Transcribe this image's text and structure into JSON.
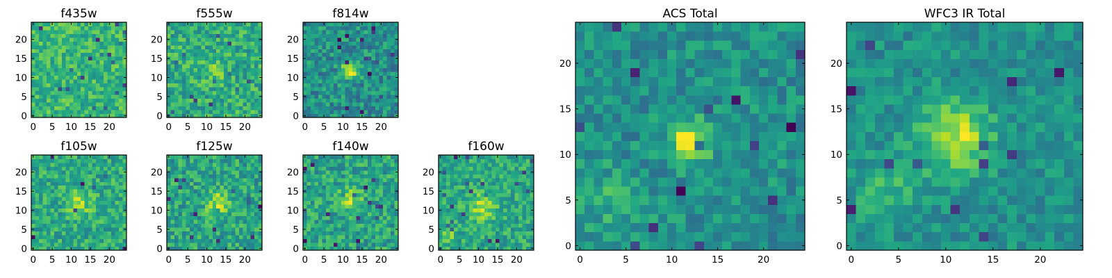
{
  "figure": {
    "background": "#ffffff"
  },
  "chart_data": [
    {
      "type": "heatmap",
      "title": "f435w",
      "xlabel": "",
      "ylabel": "",
      "xlim": [
        -0.5,
        24.5
      ],
      "ylim": [
        -0.5,
        24.5
      ],
      "xticks": [
        0,
        5,
        10,
        15,
        20
      ],
      "yticks": [
        0,
        5,
        10,
        15,
        20
      ],
      "grid_size": [
        25,
        25
      ],
      "colormap": "viridis",
      "source": {
        "kind": "noise",
        "bg": 0.66,
        "noise": 0.16,
        "seed": 11
      },
      "blobs": []
    },
    {
      "type": "heatmap",
      "title": "f555w",
      "xlabel": "",
      "ylabel": "",
      "xlim": [
        -0.5,
        24.5
      ],
      "ylim": [
        -0.5,
        24.5
      ],
      "xticks": [
        0,
        5,
        10,
        15,
        20
      ],
      "yticks": [
        0,
        5,
        10,
        15,
        20
      ],
      "grid_size": [
        25,
        25
      ],
      "colormap": "viridis",
      "source": {
        "kind": "noise",
        "bg": 0.62,
        "noise": 0.18,
        "seed": 23
      },
      "blobs": [
        {
          "x": 12,
          "y": 12,
          "sigma": 2.0,
          "amp": 0.15
        }
      ]
    },
    {
      "type": "heatmap",
      "title": "f814w",
      "xlabel": "",
      "ylabel": "",
      "xlim": [
        -0.5,
        24.5
      ],
      "ylim": [
        -0.5,
        24.5
      ],
      "xticks": [
        0,
        5,
        10,
        15,
        20
      ],
      "yticks": [
        0,
        5,
        10,
        15,
        20
      ],
      "grid_size": [
        25,
        25
      ],
      "colormap": "viridis",
      "source": {
        "kind": "noise",
        "bg": 0.5,
        "noise": 0.18,
        "seed": 37
      },
      "blobs": [
        {
          "x": 12,
          "y": 12,
          "sigma": 1.5,
          "amp": 0.5
        }
      ]
    },
    {
      "type": "heatmap",
      "title": "f105w",
      "xlabel": "",
      "ylabel": "",
      "xlim": [
        -0.5,
        24.5
      ],
      "ylim": [
        -0.5,
        24.5
      ],
      "xticks": [
        0,
        5,
        10,
        15,
        20
      ],
      "yticks": [
        0,
        5,
        10,
        15,
        20
      ],
      "grid_size": [
        25,
        25
      ],
      "colormap": "viridis",
      "source": {
        "kind": "noise",
        "bg": 0.6,
        "noise": 0.17,
        "seed": 41
      },
      "blobs": [
        {
          "x": 12,
          "y": 12,
          "sigma": 2.2,
          "amp": 0.25
        }
      ]
    },
    {
      "type": "heatmap",
      "title": "f125w",
      "xlabel": "",
      "ylabel": "",
      "xlim": [
        -0.5,
        24.5
      ],
      "ylim": [
        -0.5,
        24.5
      ],
      "xticks": [
        0,
        5,
        10,
        15,
        20
      ],
      "yticks": [
        0,
        5,
        10,
        15,
        20
      ],
      "grid_size": [
        25,
        25
      ],
      "colormap": "viridis",
      "source": {
        "kind": "noise",
        "bg": 0.58,
        "noise": 0.18,
        "seed": 53
      },
      "blobs": [
        {
          "x": 13,
          "y": 12,
          "sigma": 2.2,
          "amp": 0.3
        }
      ]
    },
    {
      "type": "heatmap",
      "title": "f140w",
      "xlabel": "",
      "ylabel": "",
      "xlim": [
        -0.5,
        24.5
      ],
      "ylim": [
        -0.5,
        24.5
      ],
      "xticks": [
        0,
        5,
        10,
        15,
        20
      ],
      "yticks": [
        0,
        5,
        10,
        15,
        20
      ],
      "grid_size": [
        25,
        25
      ],
      "colormap": "viridis",
      "source": {
        "kind": "noise",
        "bg": 0.58,
        "noise": 0.18,
        "seed": 67
      },
      "blobs": [
        {
          "x": 12,
          "y": 13,
          "sigma": 2.0,
          "amp": 0.3
        }
      ]
    },
    {
      "type": "heatmap",
      "title": "f160w",
      "xlabel": "",
      "ylabel": "",
      "xlim": [
        -0.5,
        24.5
      ],
      "ylim": [
        -0.5,
        24.5
      ],
      "xticks": [
        0,
        5,
        10,
        15,
        20
      ],
      "yticks": [
        0,
        5,
        10,
        15,
        20
      ],
      "grid_size": [
        25,
        25
      ],
      "colormap": "viridis",
      "source": {
        "kind": "noise",
        "bg": 0.6,
        "noise": 0.16,
        "seed": 79
      },
      "blobs": [
        {
          "x": 11,
          "y": 11,
          "sigma": 2.3,
          "amp": 0.3
        },
        {
          "x": 2,
          "y": 3,
          "sigma": 1.5,
          "amp": 0.2
        }
      ]
    },
    {
      "type": "heatmap",
      "title": "ACS Total",
      "xlabel": "",
      "ylabel": "",
      "xlim": [
        -0.5,
        24.5
      ],
      "ylim": [
        -0.5,
        24.5
      ],
      "xticks": [
        0,
        5,
        10,
        15,
        20
      ],
      "yticks": [
        0,
        5,
        10,
        15,
        20
      ],
      "grid_size": [
        25,
        25
      ],
      "colormap": "viridis",
      "source": {
        "kind": "noise",
        "bg": 0.5,
        "noise": 0.14,
        "seed": 97
      },
      "blobs": [
        {
          "x": 12,
          "y": 11.5,
          "sigma": 1.6,
          "amp": 0.48
        },
        {
          "x": 3,
          "y": 5,
          "sigma": 2.5,
          "amp": 0.12
        }
      ]
    },
    {
      "type": "heatmap",
      "title": "WFC3 IR Total",
      "xlabel": "",
      "ylabel": "",
      "xlim": [
        -0.5,
        24.5
      ],
      "ylim": [
        -0.5,
        24.5
      ],
      "xticks": [
        0,
        5,
        10,
        15,
        20
      ],
      "yticks": [
        0,
        5,
        10,
        15,
        20
      ],
      "grid_size": [
        25,
        25
      ],
      "colormap": "viridis",
      "source": {
        "kind": "noise",
        "bg": 0.5,
        "noise": 0.12,
        "seed": 113
      },
      "blobs": [
        {
          "x": 11,
          "y": 12,
          "sigma": 2.6,
          "amp": 0.42
        },
        {
          "x": 4,
          "y": 6,
          "sigma": 2.5,
          "amp": 0.15
        }
      ]
    }
  ]
}
